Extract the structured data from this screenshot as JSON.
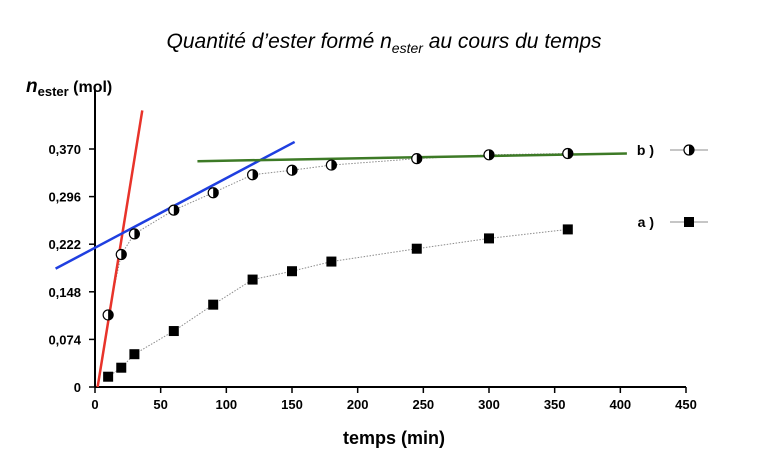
{
  "title": {
    "main": "Quantité d’ester formé n",
    "sub": "ester",
    "rest": " au cours du temps"
  },
  "chart_data": {
    "type": "scatter",
    "ylabel": {
      "symbol": "n",
      "sub": "ester",
      "unit": " (mol)"
    },
    "xlabel": "temps (min)",
    "xlim": [
      0,
      450
    ],
    "ylim": [
      0,
      0.4
    ],
    "x_ticks": [
      0,
      50,
      100,
      150,
      200,
      250,
      300,
      350,
      400,
      450
    ],
    "y_ticks": [
      0,
      0.074,
      0.148,
      0.222,
      0.296,
      0.37
    ],
    "y_tick_labels": [
      "0",
      "0,074",
      "0,148",
      "0,222",
      "0,296",
      "0,370"
    ],
    "series": [
      {
        "name": "a )",
        "marker": "square",
        "color": "#000000",
        "x": [
          10,
          20,
          30,
          60,
          90,
          120,
          150,
          180,
          245,
          300,
          360
        ],
        "y": [
          0.016,
          0.03,
          0.051,
          0.087,
          0.128,
          0.167,
          0.18,
          0.195,
          0.215,
          0.231,
          0.245
        ]
      },
      {
        "name": "b )",
        "marker": "half-circle",
        "color": "#000000",
        "x": [
          10,
          20,
          30,
          60,
          90,
          120,
          150,
          180,
          245,
          300,
          360
        ],
        "y": [
          0.112,
          0.206,
          0.238,
          0.275,
          0.302,
          0.33,
          0.337,
          0.345,
          0.355,
          0.361,
          0.363
        ]
      }
    ],
    "tangents": [
      {
        "color": "#e8332a",
        "x1": 2,
        "y1": 0.0,
        "x2": 36,
        "y2": 0.43
      },
      {
        "color": "#1f3fe0",
        "x1": -30,
        "y1": 0.184,
        "x2": 152,
        "y2": 0.381
      },
      {
        "color": "#3d7a26",
        "x1": 78,
        "y1": 0.351,
        "x2": 405,
        "y2": 0.363
      }
    ],
    "legend_position": "right"
  }
}
